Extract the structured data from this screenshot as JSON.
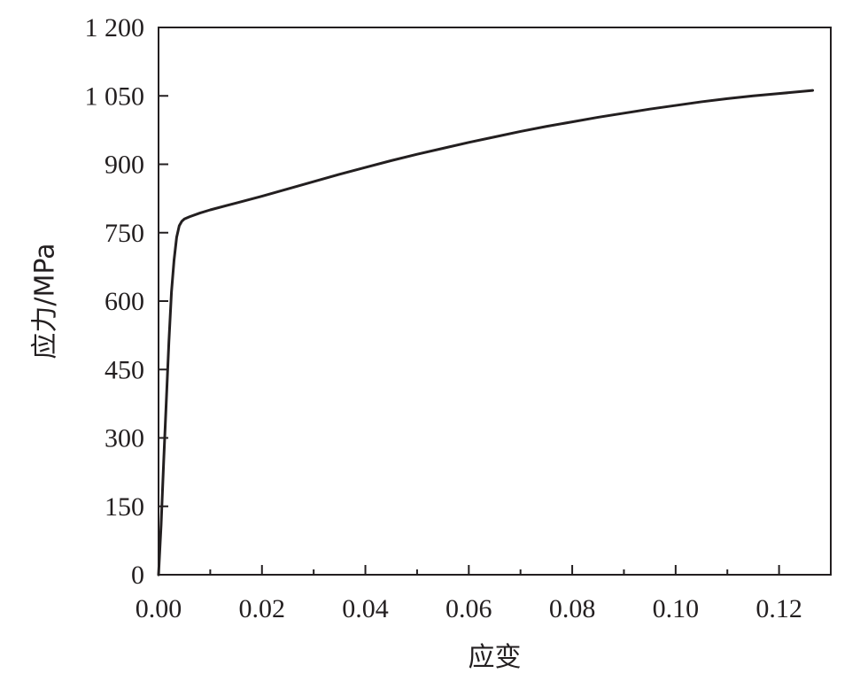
{
  "chart_data": {
    "type": "line",
    "title": "",
    "xlabel": "应变",
    "ylabel": "应力/MPa",
    "xlim": [
      0,
      0.13
    ],
    "ylim": [
      0,
      1200
    ],
    "x_ticks": [
      0,
      0.02,
      0.04,
      0.06,
      0.08,
      0.1,
      0.12
    ],
    "x_tick_labels": [
      "0.00",
      "0.02",
      "0.04",
      "0.06",
      "0.08",
      "0.10",
      "0.12"
    ],
    "x_minor_ticks": [
      0.01,
      0.03,
      0.05,
      0.07,
      0.09,
      0.11,
      0.13
    ],
    "y_ticks": [
      0,
      150,
      300,
      450,
      600,
      750,
      900,
      1050,
      1200
    ],
    "y_tick_labels": [
      "0",
      "150",
      "300",
      "450",
      "600",
      "750",
      "900",
      "1 050",
      "1 200"
    ],
    "grid": false,
    "legend": "none",
    "series": [
      {
        "x": [
          0,
          0.0005,
          0.001,
          0.0015,
          0.002,
          0.0025,
          0.003,
          0.0035,
          0.004,
          0.0045,
          0.005,
          0.006,
          0.008,
          0.01,
          0.015,
          0.02,
          0.025,
          0.03,
          0.035,
          0.04,
          0.045,
          0.05,
          0.055,
          0.06,
          0.065,
          0.07,
          0.075,
          0.08,
          0.085,
          0.09,
          0.095,
          0.1,
          0.105,
          0.11,
          0.115,
          0.12,
          0.1265
        ],
        "y": [
          0,
          110,
          250,
          380,
          510,
          620,
          690,
          740,
          765,
          775,
          780,
          785,
          793,
          800,
          815,
          830,
          846,
          862,
          878,
          893,
          908,
          922,
          935,
          948,
          960,
          972,
          983,
          993,
          1003,
          1012,
          1021,
          1029,
          1037,
          1044,
          1050,
          1055,
          1062
        ],
        "color": "#231f20"
      }
    ]
  }
}
